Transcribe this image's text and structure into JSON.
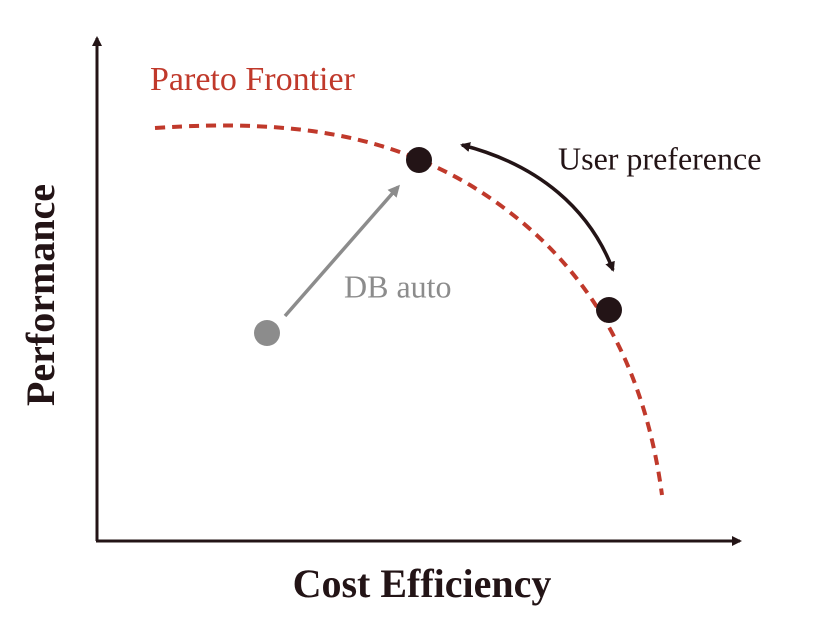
{
  "axes": {
    "y_label": "Performance",
    "x_label": "Cost Efficiency"
  },
  "labels": {
    "frontier": "Pareto Frontier",
    "user": "User preference",
    "auto": "DB auto"
  }
}
